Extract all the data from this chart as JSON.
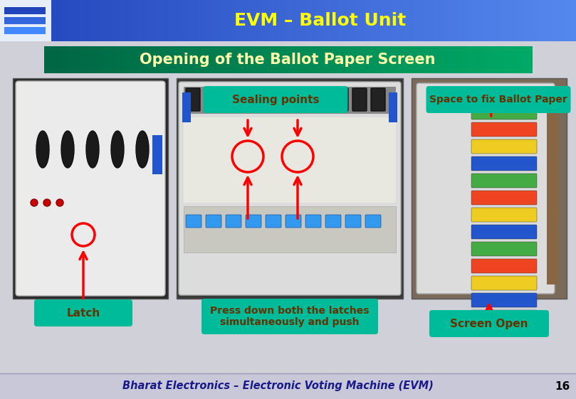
{
  "title": "EVM – Ballot Unit",
  "subtitle": "Opening of the Ballot Paper Screen",
  "footer": "Bharat Electronics – Electronic Voting Machine (EVM)",
  "page_number": "16",
  "labels": {
    "sealing_points": "Sealing points",
    "space_to_fix": "Space to fix Ballot Paper",
    "latch": "Latch",
    "press_down": "Press down both the latches\nsimultaneously and push",
    "screen_open": "Screen Open"
  },
  "colors": {
    "header_bg_left": "#2255CC",
    "header_bg_right": "#4499FF",
    "header_text": "#FFFF00",
    "subtitle_bg_left": "#007755",
    "subtitle_bg_right": "#00CC88",
    "subtitle_text": "#FFFFAA",
    "slide_bg": "#D0D0D8",
    "label_bg": "#00BB99",
    "label_text": "#663300",
    "arrow_color": "#FF0000",
    "footer_bg": "#CCCCDD",
    "footer_text": "#1A1A8C",
    "page_num_text": "#000000"
  }
}
